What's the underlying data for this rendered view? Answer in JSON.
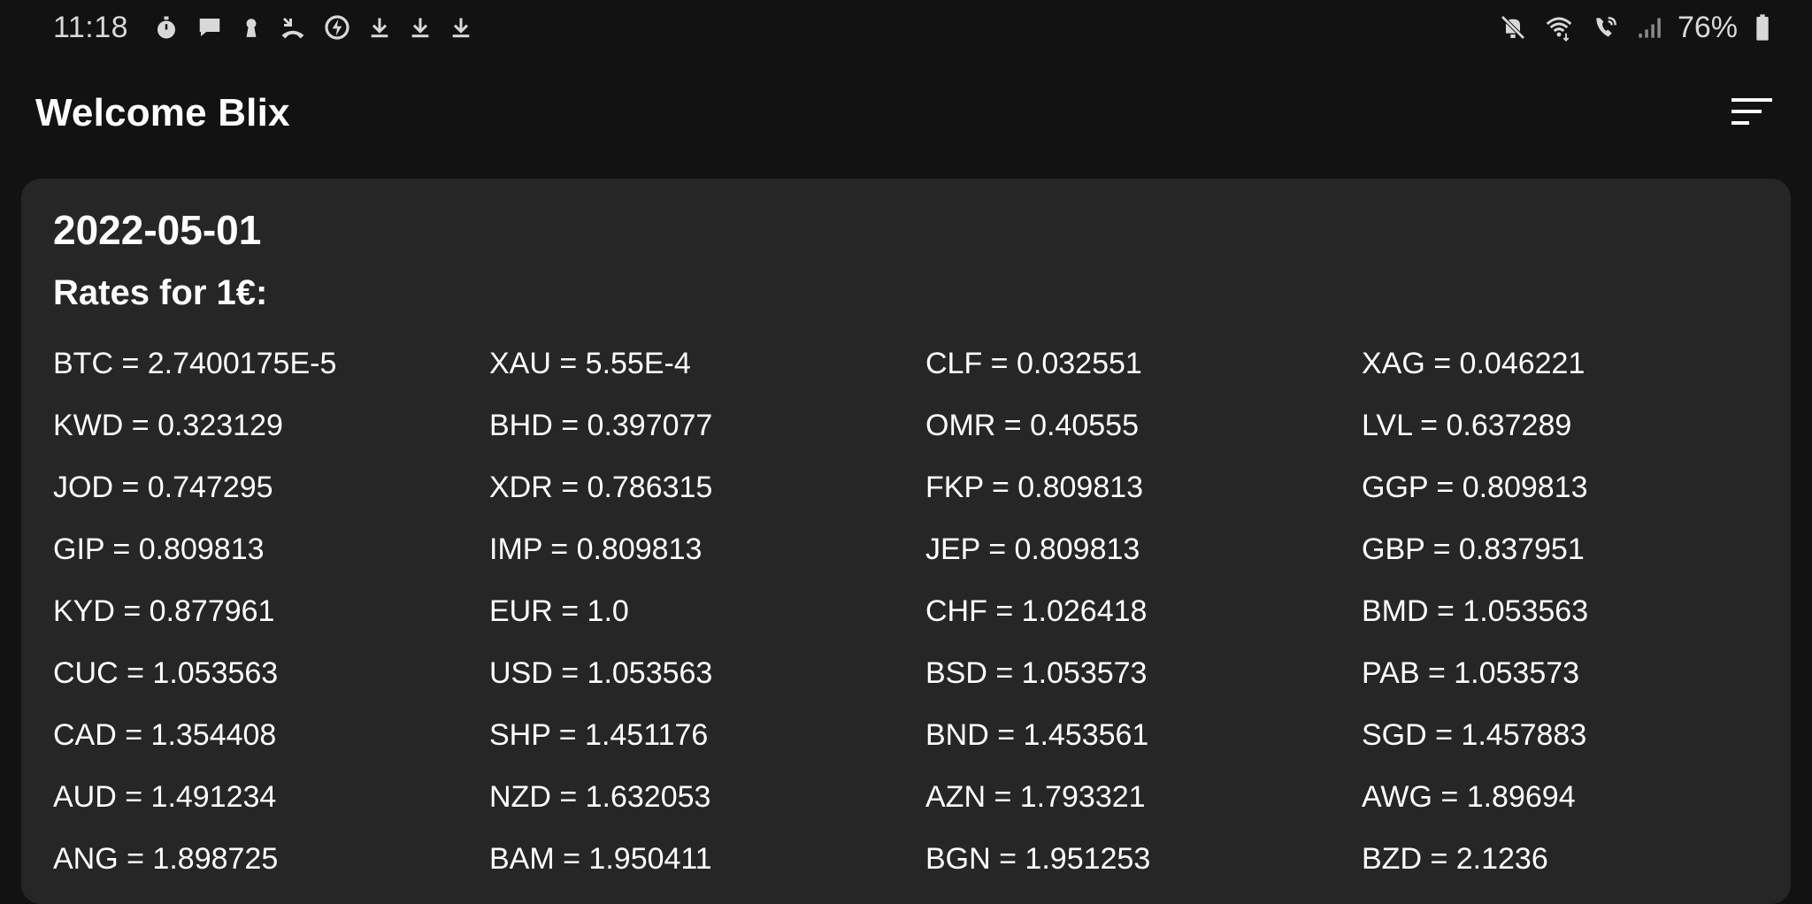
{
  "status_bar": {
    "time": "11:18",
    "battery": "76%"
  },
  "app_bar": {
    "title": "Welcome Blix",
    "menu_icon": "sort-menu-icon"
  },
  "card": {
    "date": "2022-05-01",
    "rates_title": "Rates for 1€:",
    "rates": [
      "BTC = 2.7400175E-5",
      "XAU = 5.55E-4",
      "CLF = 0.032551",
      "XAG = 0.046221",
      "KWD = 0.323129",
      "BHD = 0.397077",
      "OMR = 0.40555",
      "LVL = 0.637289",
      "JOD = 0.747295",
      "XDR = 0.786315",
      "FKP = 0.809813",
      "GGP = 0.809813",
      "GIP = 0.809813",
      "IMP = 0.809813",
      "JEP = 0.809813",
      "GBP = 0.837951",
      "KYD = 0.877961",
      "EUR = 1.0",
      "CHF = 1.026418",
      "BMD = 1.053563",
      "CUC = 1.053563",
      "USD = 1.053563",
      "BSD = 1.053573",
      "PAB = 1.053573",
      "CAD = 1.354408",
      "SHP = 1.451176",
      "BND = 1.453561",
      "SGD = 1.457883",
      "AUD = 1.491234",
      "NZD = 1.632053",
      "AZN = 1.793321",
      "AWG = 1.89694",
      "ANG = 1.898725",
      "BAM = 1.950411",
      "BGN = 1.951253",
      "BZD = 2.1236"
    ]
  }
}
